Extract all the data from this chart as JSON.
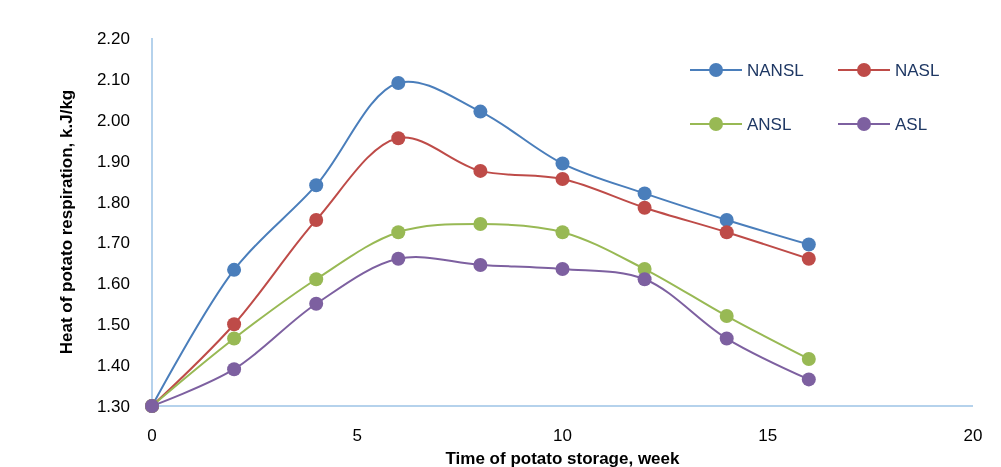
{
  "chart_data": {
    "type": "line",
    "xlabel": "Time of potato storage, week",
    "ylabel": "Heat of potato respiration, k.J/kg",
    "x": [
      0,
      2,
      4,
      6,
      8,
      10,
      12,
      14,
      16
    ],
    "series": [
      {
        "name": "NANSL",
        "color": "#4a7ebb",
        "values": [
          1.3,
          1.633,
          1.84,
          2.09,
          2.02,
          1.893,
          1.82,
          1.755,
          1.695
        ]
      },
      {
        "name": "NASL",
        "color": "#be4b48",
        "values": [
          1.3,
          1.5,
          1.755,
          1.955,
          1.875,
          1.855,
          1.785,
          1.725,
          1.66
        ]
      },
      {
        "name": "ANSL",
        "color": "#98b954",
        "values": [
          1.3,
          1.465,
          1.61,
          1.725,
          1.745,
          1.725,
          1.635,
          1.52,
          1.415
        ]
      },
      {
        "name": "ASL",
        "color": "#7d60a0",
        "values": [
          1.3,
          1.39,
          1.55,
          1.66,
          1.645,
          1.635,
          1.61,
          1.465,
          1.365
        ]
      }
    ],
    "xlim": [
      0,
      20
    ],
    "xticks": [
      0,
      5,
      10,
      15,
      20
    ],
    "ylim": [
      1.3,
      2.2
    ],
    "yticks": [
      {
        "value": 1.3,
        "label": "1.30"
      },
      {
        "value": 1.4,
        "label": "1.40"
      },
      {
        "value": 1.5,
        "label": "1.50"
      },
      {
        "value": 1.6,
        "label": "1.60"
      },
      {
        "value": 1.7,
        "label": "1.70"
      },
      {
        "value": 1.8,
        "label": "1.80"
      },
      {
        "value": 1.9,
        "label": "1.90"
      },
      {
        "value": 2.0,
        "label": "2.00"
      },
      {
        "value": 2.1,
        "label": "2.10"
      },
      {
        "value": 2.2,
        "label": "2.20"
      }
    ],
    "grid": false,
    "legend": "top right",
    "marker": "circle",
    "line_style": "solid"
  }
}
